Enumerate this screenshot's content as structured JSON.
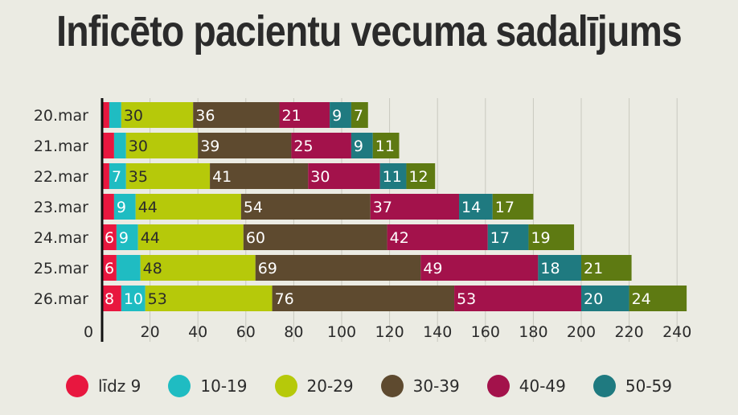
{
  "chart_data": {
    "type": "bar",
    "orientation": "horizontal",
    "stacked": true,
    "title": "Inficēto pacientu vecuma sadalījums",
    "categories": [
      "20.mar",
      "21.mar",
      "22.mar",
      "23.mar",
      "24.mar",
      "25.mar",
      "26.mar"
    ],
    "series": [
      {
        "name": "līdz 9",
        "color": "#e8173f",
        "values": [
          3,
          5,
          3,
          5,
          6,
          6,
          8
        ],
        "labels": [
          "",
          "",
          "",
          "",
          "6",
          "6",
          "8"
        ]
      },
      {
        "name": "10-19",
        "color": "#1fbcc2",
        "values": [
          5,
          5,
          7,
          9,
          9,
          10,
          10
        ],
        "labels": [
          "",
          "",
          "7",
          "9",
          "9",
          "",
          "10"
        ]
      },
      {
        "name": "20-29",
        "color": "#b6c90a",
        "values": [
          30,
          30,
          35,
          44,
          44,
          48,
          53
        ],
        "labels": [
          "30",
          "30",
          "35",
          "44",
          "44",
          "48",
          "53"
        ]
      },
      {
        "name": "30-39",
        "color": "#5e4a2f",
        "values": [
          36,
          39,
          41,
          54,
          60,
          69,
          76
        ],
        "labels": [
          "36",
          "39",
          "41",
          "54",
          "60",
          "69",
          "76"
        ]
      },
      {
        "name": "40-49",
        "color": "#a3124b",
        "values": [
          21,
          25,
          30,
          37,
          42,
          49,
          53
        ],
        "labels": [
          "21",
          "25",
          "30",
          "37",
          "42",
          "49",
          "53"
        ]
      },
      {
        "name": "50-59",
        "color": "#1f7a80",
        "values": [
          9,
          9,
          11,
          14,
          17,
          18,
          20
        ],
        "labels": [
          "9",
          "9",
          "11",
          "14",
          "17",
          "18",
          "20"
        ]
      },
      {
        "name": "",
        "color": "#5e7a12",
        "values": [
          7,
          11,
          12,
          17,
          19,
          21,
          24
        ],
        "labels": [
          "7",
          "11",
          "12",
          "17",
          "19",
          "21",
          "24"
        ]
      }
    ],
    "x_ticks": [
      0,
      20,
      40,
      60,
      80,
      100,
      120,
      140,
      160,
      180,
      200,
      220,
      240
    ],
    "xlim": [
      0,
      250
    ],
    "grid": true,
    "legend_position": "bottom"
  },
  "legend": [
    {
      "label": "līdz 9",
      "color": "#e8173f"
    },
    {
      "label": "10-19",
      "color": "#1fbcc2"
    },
    {
      "label": "20-29",
      "color": "#b6c90a"
    },
    {
      "label": "30-39",
      "color": "#5e4a2f"
    },
    {
      "label": "40-49",
      "color": "#a3124b"
    },
    {
      "label": "50-59",
      "color": "#1f7a80"
    }
  ]
}
